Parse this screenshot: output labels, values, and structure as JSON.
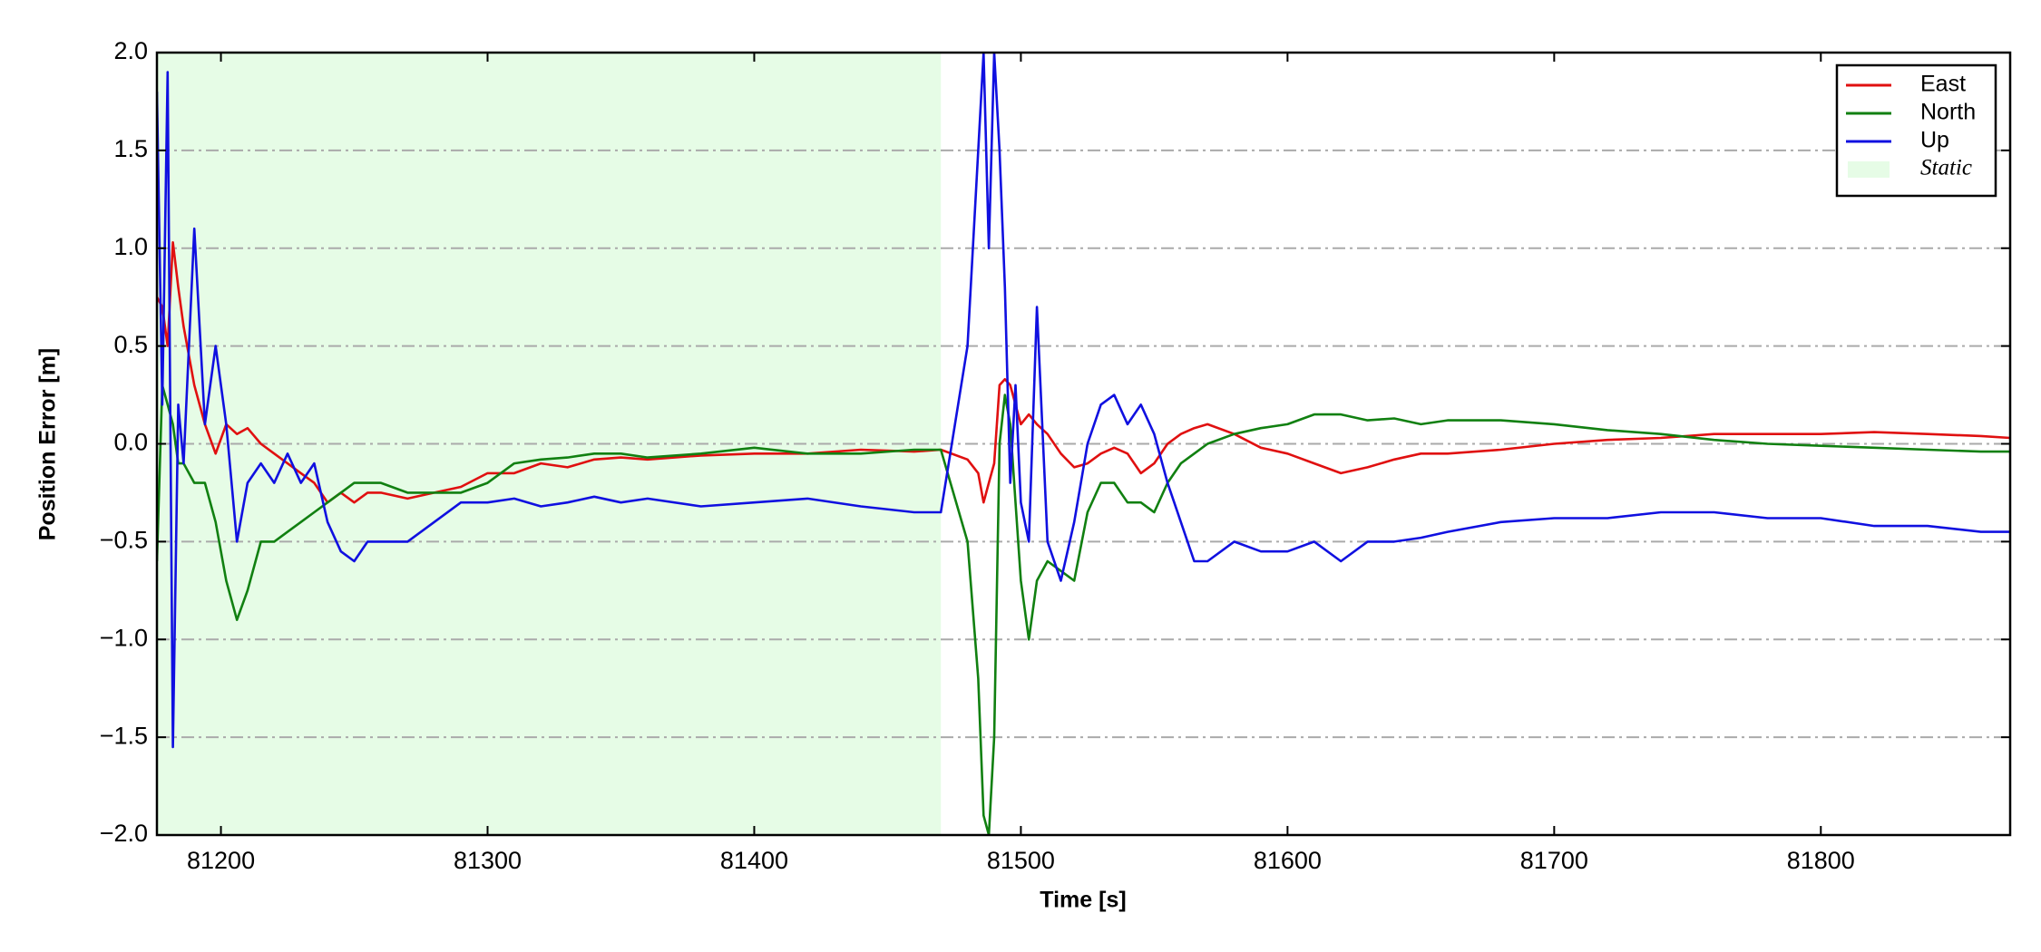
{
  "chart_data": {
    "type": "line",
    "xlabel": "Time [s]",
    "ylabel": "Position Error [m]",
    "xlim": [
      81176,
      81871
    ],
    "ylim": [
      -2,
      2
    ],
    "xticks": [
      81200,
      81300,
      81400,
      81500,
      81600,
      81700,
      81800
    ],
    "yticks": [
      {
        "value": -2,
        "label": "−2.0"
      },
      {
        "value": -1.5,
        "label": "−1.5"
      },
      {
        "value": -1,
        "label": "−1.0"
      },
      {
        "value": -0.5,
        "label": "−0.5"
      },
      {
        "value": 0,
        "label": "0.0"
      },
      0.5,
      {
        "value": 1,
        "label": "1.0"
      },
      1.5,
      {
        "value": 2,
        "label": "2.0"
      }
    ],
    "grid": true,
    "legend": "upper right",
    "shaded": {
      "name": "Static",
      "color": "#e6fce6",
      "span": [
        81176,
        81470
      ]
    },
    "x": [
      81176,
      81178,
      81180,
      81182,
      81184,
      81186,
      81190,
      81194,
      81198,
      81202,
      81206,
      81210,
      81215,
      81220,
      81225,
      81230,
      81235,
      81240,
      81245,
      81250,
      81255,
      81260,
      81270,
      81280,
      81290,
      81300,
      81310,
      81320,
      81330,
      81340,
      81350,
      81360,
      81380,
      81400,
      81420,
      81440,
      81460,
      81470,
      81480,
      81484,
      81486,
      81488,
      81490,
      81492,
      81494,
      81496,
      81498,
      81500,
      81503,
      81506,
      81510,
      81515,
      81520,
      81525,
      81530,
      81535,
      81540,
      81545,
      81550,
      81555,
      81560,
      81565,
      81570,
      81580,
      81590,
      81600,
      81610,
      81620,
      81630,
      81640,
      81650,
      81660,
      81680,
      81700,
      81720,
      81740,
      81760,
      81780,
      81800,
      81820,
      81840,
      81860,
      81871
    ],
    "series": [
      {
        "name": "East",
        "color": "#e01010",
        "values": [
          0.75,
          0.7,
          0.5,
          1.03,
          0.8,
          0.6,
          0.3,
          0.1,
          -0.05,
          0.1,
          0.05,
          0.08,
          0,
          -0.05,
          -0.1,
          -0.15,
          -0.2,
          -0.3,
          -0.25,
          -0.3,
          -0.25,
          -0.25,
          -0.28,
          -0.25,
          -0.22,
          -0.15,
          -0.15,
          -0.1,
          -0.12,
          -0.08,
          -0.07,
          -0.08,
          -0.06,
          -0.05,
          -0.05,
          -0.03,
          -0.04,
          -0.03,
          -0.08,
          -0.15,
          -0.3,
          -0.2,
          -0.1,
          0.3,
          0.33,
          0.3,
          0.2,
          0.1,
          0.15,
          0.1,
          0.05,
          -0.05,
          -0.12,
          -0.1,
          -0.05,
          -0.02,
          -0.05,
          -0.15,
          -0.1,
          0,
          0.05,
          0.08,
          0.1,
          0.05,
          -0.02,
          -0.05,
          -0.1,
          -0.15,
          -0.12,
          -0.08,
          -0.05,
          -0.05,
          -0.03,
          0,
          0.02,
          0.03,
          0.05,
          0.05,
          0.05,
          0.06,
          0.05,
          0.04,
          0.03
        ]
      },
      {
        "name": "North",
        "color": "#118011",
        "values": [
          -0.6,
          0.3,
          0.2,
          0.1,
          -0.1,
          -0.1,
          -0.2,
          -0.2,
          -0.4,
          -0.7,
          -0.9,
          -0.75,
          -0.5,
          -0.5,
          -0.45,
          -0.4,
          -0.35,
          -0.3,
          -0.25,
          -0.2,
          -0.2,
          -0.2,
          -0.25,
          -0.25,
          -0.25,
          -0.2,
          -0.1,
          -0.08,
          -0.07,
          -0.05,
          -0.05,
          -0.07,
          -0.05,
          -0.02,
          -0.05,
          -0.05,
          -0.03,
          -0.03,
          -0.5,
          -1.2,
          -1.9,
          -2,
          -1.5,
          0,
          0.25,
          0.1,
          -0.3,
          -0.7,
          -1,
          -0.7,
          -0.6,
          -0.65,
          -0.7,
          -0.35,
          -0.2,
          -0.2,
          -0.3,
          -0.3,
          -0.35,
          -0.2,
          -0.1,
          -0.05,
          0,
          0.05,
          0.08,
          0.1,
          0.15,
          0.15,
          0.12,
          0.13,
          0.1,
          0.12,
          0.12,
          0.1,
          0.07,
          0.05,
          0.02,
          0,
          -0.01,
          -0.02,
          -0.03,
          -0.04,
          -0.04
        ]
      },
      {
        "name": "Up",
        "color": "#1010e0",
        "values": [
          1.8,
          0.2,
          1.9,
          -1.55,
          0.2,
          -0.1,
          1.1,
          0.1,
          0.5,
          0.1,
          -0.5,
          -0.2,
          -0.1,
          -0.2,
          -0.05,
          -0.2,
          -0.1,
          -0.4,
          -0.55,
          -0.6,
          -0.5,
          -0.5,
          -0.5,
          -0.4,
          -0.3,
          -0.3,
          -0.28,
          -0.32,
          -0.3,
          -0.27,
          -0.3,
          -0.28,
          -0.32,
          -0.3,
          -0.28,
          -0.32,
          -0.35,
          -0.35,
          0.5,
          1.5,
          2,
          1,
          2,
          1.5,
          0.8,
          -0.2,
          0.3,
          -0.3,
          -0.5,
          0.7,
          -0.5,
          -0.7,
          -0.4,
          0,
          0.2,
          0.25,
          0.1,
          0.2,
          0.05,
          -0.2,
          -0.4,
          -0.6,
          -0.6,
          -0.5,
          -0.55,
          -0.55,
          -0.5,
          -0.6,
          -0.5,
          -0.5,
          -0.48,
          -0.45,
          -0.4,
          -0.38,
          -0.38,
          -0.35,
          -0.35,
          -0.38,
          -0.38,
          -0.42,
          -0.42,
          -0.45,
          -0.45
        ]
      }
    ]
  }
}
